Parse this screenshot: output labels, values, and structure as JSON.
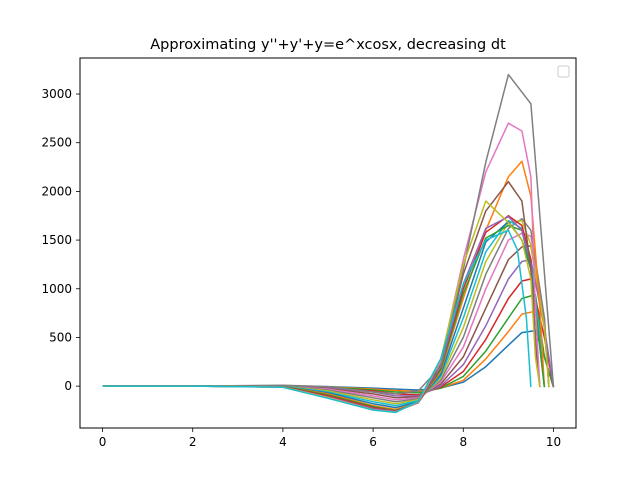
{
  "chart_data": {
    "type": "line",
    "title": "Approximating y''+y'+y=e^xcosx, decreasing dt",
    "xlabel": "",
    "ylabel": "",
    "xlim": [
      -0.5,
      10.5
    ],
    "ylim": [
      -430,
      3370
    ],
    "xticks": [
      0,
      2,
      4,
      6,
      8,
      10
    ],
    "yticks": [
      0,
      500,
      1000,
      1500,
      2000,
      2500,
      3000
    ],
    "grid": false,
    "legend": {
      "position": "top-right",
      "entries": []
    },
    "series": [
      {
        "color": "#1f77b4",
        "points": [
          [
            0,
            0
          ],
          [
            2,
            0
          ],
          [
            4,
            0
          ],
          [
            5,
            -5
          ],
          [
            6,
            -20
          ],
          [
            6.5,
            -30
          ],
          [
            7,
            -40
          ],
          [
            7.5,
            -20
          ],
          [
            8,
            40
          ],
          [
            8.5,
            200
          ],
          [
            9,
            420
          ],
          [
            9.3,
            550
          ],
          [
            9.6,
            570
          ],
          [
            9.8,
            300
          ],
          [
            10,
            -10
          ]
        ]
      },
      {
        "color": "#ff7f0e",
        "points": [
          [
            0,
            0
          ],
          [
            2,
            0
          ],
          [
            4,
            0
          ],
          [
            5,
            -8
          ],
          [
            6,
            -30
          ],
          [
            6.5,
            -45
          ],
          [
            7,
            -55
          ],
          [
            7.5,
            -20
          ],
          [
            8,
            60
          ],
          [
            8.5,
            280
          ],
          [
            9,
            560
          ],
          [
            9.3,
            740
          ],
          [
            9.6,
            770
          ],
          [
            9.8,
            300
          ],
          [
            10,
            -10
          ]
        ]
      },
      {
        "color": "#2ca02c",
        "points": [
          [
            0,
            0
          ],
          [
            2,
            0
          ],
          [
            4,
            0
          ],
          [
            5,
            -10
          ],
          [
            6,
            -40
          ],
          [
            6.5,
            -60
          ],
          [
            7,
            -70
          ],
          [
            7.5,
            -20
          ],
          [
            8,
            100
          ],
          [
            8.5,
            360
          ],
          [
            9,
            700
          ],
          [
            9.3,
            900
          ],
          [
            9.6,
            940
          ],
          [
            9.8,
            300
          ],
          [
            10,
            -10
          ]
        ]
      },
      {
        "color": "#d62728",
        "points": [
          [
            0,
            0
          ],
          [
            2,
            0
          ],
          [
            4,
            0
          ],
          [
            5,
            -15
          ],
          [
            6,
            -50
          ],
          [
            6.5,
            -80
          ],
          [
            7,
            -90
          ],
          [
            7.5,
            -10
          ],
          [
            8,
            150
          ],
          [
            8.5,
            480
          ],
          [
            9,
            900
          ],
          [
            9.3,
            1080
          ],
          [
            9.5,
            1100
          ],
          [
            9.8,
            500
          ],
          [
            10,
            -10
          ]
        ]
      },
      {
        "color": "#9467bd",
        "points": [
          [
            0,
            0
          ],
          [
            2,
            0
          ],
          [
            4,
            0
          ],
          [
            5,
            -20
          ],
          [
            6,
            -60
          ],
          [
            6.5,
            -100
          ],
          [
            7,
            -100
          ],
          [
            7.5,
            0
          ],
          [
            8,
            220
          ],
          [
            8.5,
            620
          ],
          [
            9,
            1100
          ],
          [
            9.3,
            1280
          ],
          [
            9.5,
            1300
          ],
          [
            9.8,
            600
          ],
          [
            10,
            -10
          ]
        ]
      },
      {
        "color": "#8c564b",
        "points": [
          [
            0,
            0
          ],
          [
            2,
            0
          ],
          [
            4,
            0
          ],
          [
            5,
            -25
          ],
          [
            6,
            -80
          ],
          [
            6.5,
            -120
          ],
          [
            7,
            -110
          ],
          [
            7.5,
            20
          ],
          [
            8,
            300
          ],
          [
            8.5,
            800
          ],
          [
            9,
            1300
          ],
          [
            9.3,
            1430
          ],
          [
            9.5,
            1440
          ],
          [
            9.8,
            600
          ],
          [
            9.9,
            -10
          ]
        ]
      },
      {
        "color": "#e377c2",
        "points": [
          [
            0,
            0
          ],
          [
            2,
            0
          ],
          [
            4,
            0
          ],
          [
            5,
            -30
          ],
          [
            6,
            -100
          ],
          [
            6.5,
            -140
          ],
          [
            7,
            -120
          ],
          [
            7.5,
            40
          ],
          [
            8,
            400
          ],
          [
            8.5,
            1000
          ],
          [
            9,
            1500
          ],
          [
            9.3,
            1570
          ],
          [
            9.5,
            1540
          ],
          [
            9.8,
            700
          ],
          [
            9.9,
            -10
          ]
        ]
      },
      {
        "color": "#7f7f7f",
        "points": [
          [
            0,
            0
          ],
          [
            2,
            0
          ],
          [
            4,
            0
          ],
          [
            5,
            -40
          ],
          [
            6,
            -120
          ],
          [
            6.5,
            -160
          ],
          [
            7,
            -130
          ],
          [
            7.5,
            60
          ],
          [
            8,
            500
          ],
          [
            8.5,
            1150
          ],
          [
            9,
            1620
          ],
          [
            9.3,
            1720
          ],
          [
            9.5,
            1600
          ],
          [
            9.8,
            700
          ],
          [
            9.9,
            -10
          ]
        ]
      },
      {
        "color": "#bcbd22",
        "points": [
          [
            0,
            0
          ],
          [
            2,
            0
          ],
          [
            4,
            0
          ],
          [
            5,
            -50
          ],
          [
            6,
            -140
          ],
          [
            6.5,
            -180
          ],
          [
            7,
            -140
          ],
          [
            7.5,
            80
          ],
          [
            8,
            600
          ],
          [
            8.5,
            1280
          ],
          [
            9,
            1680
          ],
          [
            9.3,
            1700
          ],
          [
            9.5,
            1450
          ],
          [
            9.8,
            600
          ],
          [
            9.9,
            -10
          ]
        ]
      },
      {
        "color": "#17becf",
        "points": [
          [
            0,
            0
          ],
          [
            2,
            0
          ],
          [
            4,
            0
          ],
          [
            5,
            -60
          ],
          [
            6,
            -160
          ],
          [
            6.5,
            -200
          ],
          [
            7,
            -150
          ],
          [
            7.5,
            100
          ],
          [
            8,
            700
          ],
          [
            8.5,
            1380
          ],
          [
            9,
            1700
          ],
          [
            9.3,
            1620
          ],
          [
            9.5,
            1300
          ],
          [
            9.7,
            500
          ],
          [
            9.8,
            -10
          ]
        ]
      },
      {
        "color": "#1f77b4",
        "points": [
          [
            0,
            0
          ],
          [
            2,
            0
          ],
          [
            4,
            -5
          ],
          [
            5,
            -70
          ],
          [
            6,
            -180
          ],
          [
            6.5,
            -220
          ],
          [
            7,
            -160
          ],
          [
            7.5,
            120
          ],
          [
            8,
            800
          ],
          [
            8.5,
            1480
          ],
          [
            9,
            1690
          ],
          [
            9.3,
            1500
          ],
          [
            9.5,
            1200
          ],
          [
            9.7,
            400
          ],
          [
            9.8,
            -10
          ]
        ]
      },
      {
        "color": "#ff7f0e",
        "points": [
          [
            0,
            0
          ],
          [
            2,
            0
          ],
          [
            4,
            -5
          ],
          [
            5,
            -80
          ],
          [
            6,
            -200
          ],
          [
            6.5,
            -240
          ],
          [
            7,
            -170
          ],
          [
            7.5,
            150
          ],
          [
            8,
            900
          ],
          [
            8.5,
            1600
          ],
          [
            9,
            2150
          ],
          [
            9.3,
            2310
          ],
          [
            9.5,
            1950
          ],
          [
            9.7,
            800
          ],
          [
            9.8,
            -10
          ]
        ]
      },
      {
        "color": "#2ca02c",
        "points": [
          [
            0,
            0
          ],
          [
            2,
            0
          ],
          [
            4,
            -5
          ],
          [
            5,
            -90
          ],
          [
            6,
            -210
          ],
          [
            6.5,
            -250
          ],
          [
            7,
            -170
          ],
          [
            7.5,
            170
          ],
          [
            8,
            950
          ],
          [
            8.5,
            1520
          ],
          [
            9,
            1650
          ],
          [
            9.3,
            1600
          ],
          [
            9.5,
            1200
          ],
          [
            9.7,
            400
          ],
          [
            9.8,
            -10
          ]
        ]
      },
      {
        "color": "#d62728",
        "points": [
          [
            0,
            0
          ],
          [
            2,
            0
          ],
          [
            4,
            -8
          ],
          [
            5,
            -100
          ],
          [
            6,
            -220
          ],
          [
            6.5,
            -255
          ],
          [
            7,
            -170
          ],
          [
            7.5,
            190
          ],
          [
            8,
            1000
          ],
          [
            8.5,
            1580
          ],
          [
            9,
            1750
          ],
          [
            9.3,
            1650
          ],
          [
            9.5,
            1300
          ],
          [
            9.6,
            500
          ],
          [
            9.7,
            -10
          ]
        ]
      },
      {
        "color": "#9467bd",
        "points": [
          [
            0,
            0
          ],
          [
            2,
            0
          ],
          [
            4,
            -10
          ],
          [
            5,
            -110
          ],
          [
            6,
            -230
          ],
          [
            6.5,
            -260
          ],
          [
            7,
            -170
          ],
          [
            7.5,
            200
          ],
          [
            8,
            1050
          ],
          [
            8.5,
            1620
          ],
          [
            9,
            1740
          ],
          [
            9.3,
            1600
          ],
          [
            9.5,
            1250
          ],
          [
            9.6,
            500
          ],
          [
            9.7,
            -10
          ]
        ]
      },
      {
        "color": "#8c564b",
        "points": [
          [
            0,
            0
          ],
          [
            2,
            0
          ],
          [
            4,
            -10
          ],
          [
            5,
            -110
          ],
          [
            6,
            -235
          ],
          [
            6.5,
            -262
          ],
          [
            7,
            -170
          ],
          [
            7.5,
            220
          ],
          [
            8,
            1150
          ],
          [
            8.5,
            1800
          ],
          [
            9,
            2100
          ],
          [
            9.3,
            1900
          ],
          [
            9.5,
            1200
          ],
          [
            9.6,
            400
          ],
          [
            9.7,
            -10
          ]
        ]
      },
      {
        "color": "#e377c2",
        "points": [
          [
            0,
            0
          ],
          [
            2,
            0
          ],
          [
            4,
            -10
          ],
          [
            5,
            -115
          ],
          [
            6,
            -240
          ],
          [
            6.5,
            -265
          ],
          [
            7,
            -165
          ],
          [
            7.5,
            250
          ],
          [
            8,
            1300
          ],
          [
            8.5,
            2200
          ],
          [
            9,
            2700
          ],
          [
            9.3,
            2620
          ],
          [
            9.5,
            2150
          ],
          [
            9.6,
            800
          ],
          [
            9.7,
            -10
          ]
        ]
      },
      {
        "color": "#7f7f7f",
        "points": [
          [
            0,
            0
          ],
          [
            2,
            0
          ],
          [
            4,
            10
          ],
          [
            5,
            -5
          ],
          [
            6,
            -60
          ],
          [
            6.5,
            -80
          ],
          [
            7,
            -50
          ],
          [
            7.5,
            200
          ],
          [
            8,
            1200
          ],
          [
            8.5,
            2300
          ],
          [
            9,
            3200
          ],
          [
            9.5,
            2900
          ],
          [
            10,
            -10
          ]
        ]
      },
      {
        "color": "#bcbd22",
        "points": [
          [
            0,
            0
          ],
          [
            2,
            0
          ],
          [
            4,
            -10
          ],
          [
            5,
            -120
          ],
          [
            6,
            -245
          ],
          [
            6.5,
            -268
          ],
          [
            7,
            -160
          ],
          [
            7.5,
            270
          ],
          [
            8,
            1250
          ],
          [
            8.5,
            1900
          ],
          [
            9,
            1680
          ],
          [
            9.3,
            1500
          ],
          [
            9.5,
            1100
          ],
          [
            9.6,
            300
          ],
          [
            9.7,
            -10
          ]
        ]
      },
      {
        "color": "#17becf",
        "points": [
          [
            0,
            0
          ],
          [
            2,
            0
          ],
          [
            4,
            -12
          ],
          [
            5,
            -125
          ],
          [
            6,
            -245
          ],
          [
            6.5,
            -270
          ],
          [
            7,
            -155
          ],
          [
            7.5,
            280
          ],
          [
            8,
            1050
          ],
          [
            8.5,
            1500
          ],
          [
            9,
            1600
          ],
          [
            9.2,
            1400
          ],
          [
            9.4,
            700
          ],
          [
            9.5,
            -10
          ]
        ]
      }
    ]
  }
}
